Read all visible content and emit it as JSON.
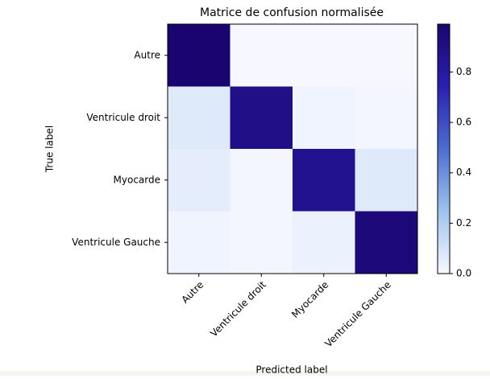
{
  "chart_data": {
    "type": "heatmap",
    "title": "Matrice de confusion normalisée",
    "xlabel": "Predicted label",
    "ylabel": "True label",
    "x_categories": [
      "Autre",
      "Ventricule droit",
      "Myocarde",
      "Ventricule Gauche"
    ],
    "y_categories": [
      "Autre",
      "Ventricule droit",
      "Myocarde",
      "Ventricule Gauche"
    ],
    "values": [
      [
        0.99,
        0.0,
        0.0,
        0.0
      ],
      [
        0.07,
        0.9,
        0.02,
        0.01
      ],
      [
        0.05,
        0.01,
        0.87,
        0.07
      ],
      [
        0.02,
        0.01,
        0.03,
        0.95
      ]
    ],
    "colorbar_lim": [
      0,
      0.99
    ],
    "colorbar_ticks": [
      {
        "value": 0,
        "label": "0.0"
      },
      {
        "value": 0.2,
        "label": "0.2"
      },
      {
        "value": 0.4,
        "label": "0.4"
      },
      {
        "value": 0.6,
        "label": "0.6"
      },
      {
        "value": 0.8,
        "label": "0.8"
      }
    ],
    "colors": [
      "#f7f8ff",
      "#9ec3ee",
      "#4a6fd0",
      "#2a20b0",
      "#1a0570"
    ]
  }
}
